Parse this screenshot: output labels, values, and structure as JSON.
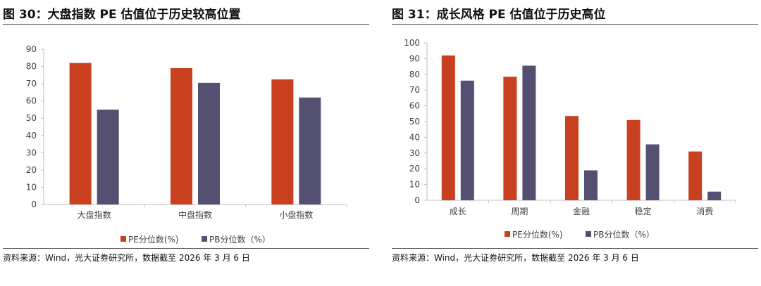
{
  "colors": {
    "pe": "#C8401F",
    "pb": "#535071",
    "axis": "#BFBFBF",
    "text": "#404040"
  },
  "figures": [
    {
      "title": "图 30：大盘指数 PE 估值位于历史较高位置",
      "source": "资料来源：Wind，光大证券研究所，数据截至 2026 年 3 月 6 日",
      "chart_data": {
        "type": "bar",
        "categories": [
          "大盘指数",
          "中盘指数",
          "小盘指数"
        ],
        "series": [
          {
            "name": "PE分位数(%)",
            "values": [
              82,
              79,
              72.5
            ]
          },
          {
            "name": "PB分位数（%）",
            "values": [
              55,
              70.5,
              62
            ]
          }
        ],
        "ylim": [
          0,
          90
        ],
        "yticks": [
          0,
          10,
          20,
          30,
          40,
          50,
          60,
          70,
          80,
          90
        ],
        "legend": "bottom",
        "grid": false
      }
    },
    {
      "title": "图 31：成长风格 PE 估值位于历史高位",
      "source": "资料来源：Wind，光大证券研究所，数据截至 2026 年 3 月 6 日",
      "chart_data": {
        "type": "bar",
        "categories": [
          "成长",
          "周期",
          "金融",
          "稳定",
          "消费"
        ],
        "series": [
          {
            "name": "PE分位数(%)",
            "values": [
              92,
              78.5,
              53.5,
              51,
              31
            ]
          },
          {
            "name": "PB分位数（%）",
            "values": [
              76,
              85.5,
              19,
              35.5,
              5.5
            ]
          }
        ],
        "ylim": [
          0,
          100
        ],
        "yticks": [
          0,
          10,
          20,
          30,
          40,
          50,
          60,
          70,
          80,
          90,
          100
        ],
        "legend": "bottom",
        "grid": false
      }
    }
  ]
}
